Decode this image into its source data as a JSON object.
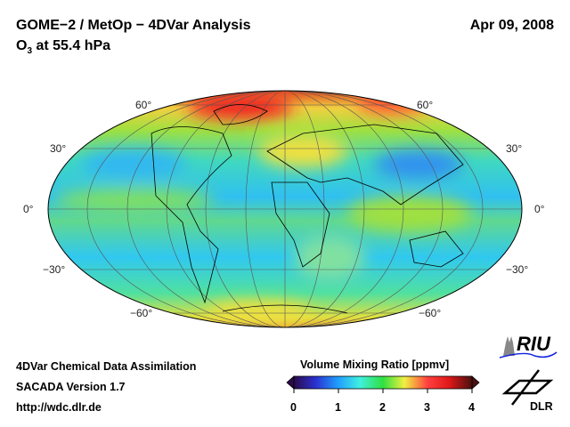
{
  "header": {
    "title": "GOME−2 / MetOp − 4DVar Analysis",
    "species": "O",
    "species_sub": "3",
    "level": " at 55.4 hPa",
    "date": "Apr 09, 2008"
  },
  "map": {
    "projection": "Mollweide",
    "lat_labels": {
      "n60": "60°",
      "n30": "30°",
      "eq": "0°",
      "s30": "−30°",
      "s60": "−60°"
    }
  },
  "footer": {
    "line1": "4DVar Chemical Data Assimilation",
    "line2": "SACADA Version 1.7",
    "line3": "http://wdc.dlr.de"
  },
  "colorbar": {
    "title": "Volume Mixing Ratio [ppmv]",
    "ticks": [
      "0",
      "1",
      "2",
      "3",
      "4"
    ],
    "range": [
      0,
      4
    ],
    "colors": [
      "#2a0a4a",
      "#1a3cff",
      "#39e8e8",
      "#2ee02e",
      "#f0f040",
      "#ff2020",
      "#5a1010"
    ]
  },
  "logos": {
    "riu": "RIU",
    "dlr": "DLR"
  }
}
